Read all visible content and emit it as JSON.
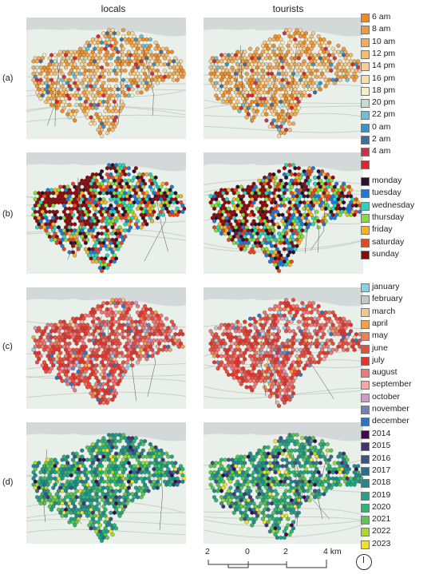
{
  "columns": {
    "left": "locals",
    "right": "tourists"
  },
  "rows": [
    {
      "label": "(a)",
      "legend": "hours"
    },
    {
      "label": "(b)",
      "legend": "weekdays"
    },
    {
      "label": "(c)",
      "legend": "months"
    },
    {
      "label": "(d)",
      "legend": "years"
    }
  ],
  "legends": {
    "hours": [
      {
        "label": "6 am",
        "color": "#f08a25"
      },
      {
        "label": "8 am",
        "color": "#f29a3b"
      },
      {
        "label": "10 am",
        "color": "#f4ab55"
      },
      {
        "label": "12 pm",
        "color": "#f6bc72"
      },
      {
        "label": "14 pm",
        "color": "#f7cc8e"
      },
      {
        "label": "16 pm",
        "color": "#f8dcaa"
      },
      {
        "label": "18 pm",
        "color": "#f5efc4"
      },
      {
        "label": "20 pm",
        "color": "#bfe0cf"
      },
      {
        "label": "22 pm",
        "color": "#6fbfd0"
      },
      {
        "label": "0 am",
        "color": "#3a93c3"
      },
      {
        "label": "2 am",
        "color": "#3d6fa5"
      },
      {
        "label": "4 am",
        "color": "#c7334a"
      },
      {
        "label": "",
        "color": "#e0242c"
      }
    ],
    "weekdays": [
      {
        "label": "monday",
        "color": "#2a0f2f"
      },
      {
        "label": "tuesday",
        "color": "#1e78d8"
      },
      {
        "label": "wednesday",
        "color": "#2bd5b5"
      },
      {
        "label": "thursday",
        "color": "#7fe03a"
      },
      {
        "label": "friday",
        "color": "#f2b32a"
      },
      {
        "label": "saturday",
        "color": "#e8461c"
      },
      {
        "label": "sunday",
        "color": "#8a0b0b"
      }
    ],
    "months": [
      {
        "label": "january",
        "color": "#8fd0e8"
      },
      {
        "label": "february",
        "color": "#c3c8c3"
      },
      {
        "label": "march",
        "color": "#f3c68e"
      },
      {
        "label": "april",
        "color": "#f4a043"
      },
      {
        "label": "may",
        "color": "#f27d52"
      },
      {
        "label": "june",
        "color": "#ea4d3a"
      },
      {
        "label": "july",
        "color": "#e5332e"
      },
      {
        "label": "august",
        "color": "#f07777"
      },
      {
        "label": "september",
        "color": "#f2a6a6"
      },
      {
        "label": "october",
        "color": "#d498c8"
      },
      {
        "label": "november",
        "color": "#6f83b6"
      },
      {
        "label": "december",
        "color": "#2a76c4"
      }
    ],
    "years": [
      {
        "label": "2014",
        "color": "#3b0a4f"
      },
      {
        "label": "2015",
        "color": "#45307a"
      },
      {
        "label": "2016",
        "color": "#3b5488"
      },
      {
        "label": "2017",
        "color": "#2c6f8c"
      },
      {
        "label": "2018",
        "color": "#21898c"
      },
      {
        "label": "2019",
        "color": "#1fa287"
      },
      {
        "label": "2020",
        "color": "#2ab673"
      },
      {
        "label": "2021",
        "color": "#5cc653"
      },
      {
        "label": "2022",
        "color": "#a8d834"
      },
      {
        "label": "2023",
        "color": "#f3e028"
      }
    ]
  },
  "scale": {
    "ticks": [
      "2",
      "0",
      "2",
      "4 km"
    ]
  },
  "map_colors": {
    "background": "#e9efe9",
    "sea": "#d3d9d9",
    "road": "#c9cfc9",
    "border": "#555555"
  }
}
